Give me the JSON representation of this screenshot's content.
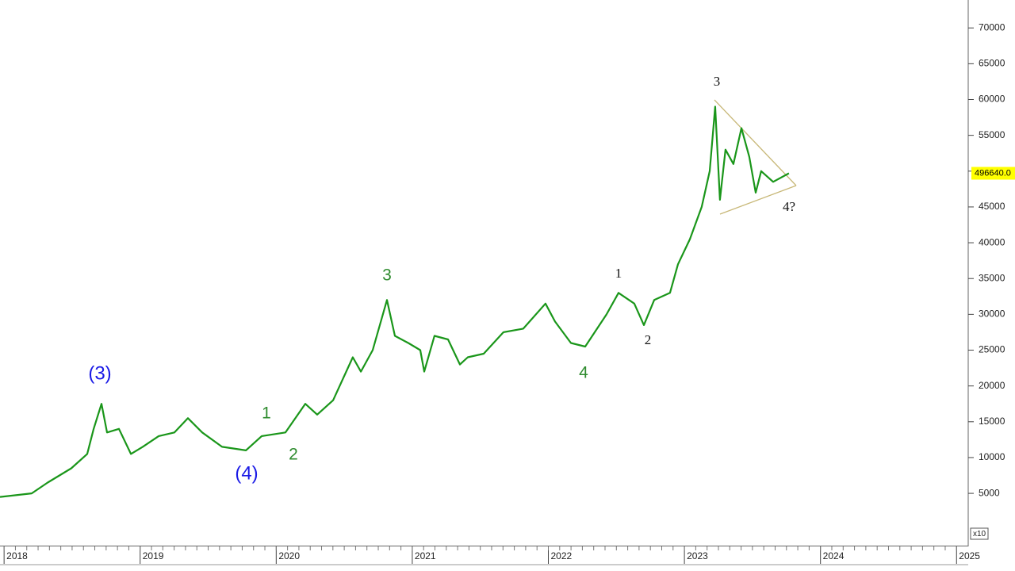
{
  "chart_data": {
    "type": "line",
    "x": [
      2017.97,
      2018.203,
      2018.32,
      2018.494,
      2018.611,
      2018.658,
      2018.716,
      2018.757,
      2018.844,
      2018.932,
      2019.019,
      2019.136,
      2019.252,
      2019.351,
      2019.456,
      2019.602,
      2019.777,
      2019.893,
      2020.068,
      2020.214,
      2020.301,
      2020.418,
      2020.563,
      2020.622,
      2020.709,
      2020.814,
      2020.872,
      2020.971,
      2021.059,
      2021.088,
      2021.163,
      2021.263,
      2021.35,
      2021.408,
      2021.525,
      2021.67,
      2021.816,
      2021.979,
      2022.049,
      2022.166,
      2022.271,
      2022.341,
      2022.428,
      2022.516,
      2022.632,
      2022.702,
      2022.778,
      2022.894,
      2022.953,
      2023.04,
      2023.127,
      2023.186,
      2023.226,
      2023.261,
      2023.302,
      2023.36,
      2023.419,
      2023.477,
      2023.524,
      2023.564,
      2023.652,
      2023.768
    ],
    "series": [
      {
        "color": "#1a961a",
        "values": [
          4500,
          5000,
          6500,
          8500,
          10500,
          14000,
          17500,
          13500,
          14000,
          10500,
          11500,
          13000,
          13500,
          15500,
          13500,
          11500,
          11000,
          13000,
          13500,
          17500,
          16000,
          18000,
          24000,
          22000,
          25000,
          32000,
          27000,
          26000,
          25000,
          22000,
          27000,
          26500,
          23000,
          24000,
          24500,
          27500,
          28000,
          31500,
          29000,
          26000,
          25500,
          27500,
          30000,
          33000,
          31500,
          28500,
          32000,
          33000,
          37000,
          40500,
          45000,
          50000,
          59000,
          46000,
          53000,
          51000,
          56000,
          52000,
          47000,
          50000,
          48500,
          49700
        ]
      }
    ],
    "xlim": [
      2017.97,
      2025.08
    ],
    "xticks": [
      2018,
      2019,
      2020,
      2021,
      2022,
      2023,
      2024,
      2025
    ],
    "ylim": [
      -2300,
      73900
    ],
    "yticks": [
      5000,
      10000,
      15000,
      20000,
      25000,
      30000,
      35000,
      40000,
      45000,
      50000,
      55000,
      60000,
      65000,
      70000
    ],
    "last_price_label": "496640.0",
    "scale_note": "x10",
    "annotations": [
      {
        "text": "(3)",
        "color": "#1a1ae6"
      },
      {
        "text": "(4)",
        "color": "#1a1ae6"
      },
      {
        "text": "1",
        "color": "#2e8b2e"
      },
      {
        "text": "2",
        "color": "#2e8b2e"
      },
      {
        "text": "3",
        "color": "#2e8b2e"
      },
      {
        "text": "4",
        "color": "#2e8b2e"
      },
      {
        "text": "1",
        "color": "#111111"
      },
      {
        "text": "2",
        "color": "#111111"
      },
      {
        "text": "3",
        "color": "#111111"
      },
      {
        "text": "4?",
        "color": "#111111"
      }
    ]
  }
}
